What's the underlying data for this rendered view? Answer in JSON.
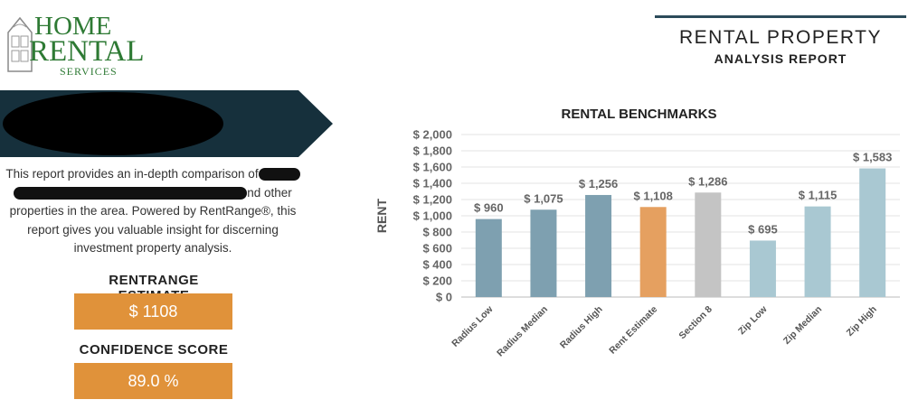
{
  "logo": {
    "line1": "HOME",
    "line2": "RENTAL",
    "line3": "SERVICES"
  },
  "description": {
    "part1": "This report provides an in-depth comparison of",
    "part2": "nd other",
    "rest": "properties in the area. Powered by RentRange®, this report gives you valuable insight for discerning investment property analysis."
  },
  "estimate": {
    "label": "RENTRANGE ESTIMATE",
    "value": "$ 1108"
  },
  "confidence": {
    "label": "CONFIDENCE SCORE",
    "value": "89.0 %"
  },
  "header": {
    "title": "RENTAL PROPERTY",
    "subtitle": "ANALYSIS REPORT",
    "rule_color": "#2c4b5a"
  },
  "chart_data": {
    "type": "bar",
    "title": "RENTAL BENCHMARKS",
    "xlabel": "",
    "ylabel": "RENT",
    "ylim": [
      0,
      2000
    ],
    "yticks": [
      0,
      200,
      400,
      600,
      800,
      1000,
      1200,
      1400,
      1600,
      1800,
      2000
    ],
    "ytick_labels": [
      "$ 0",
      "$ 200",
      "$ 400",
      "$ 600",
      "$ 800",
      "$ 1,000",
      "$ 1,200",
      "$ 1,400",
      "$ 1,600",
      "$ 1,800",
      "$ 2,000"
    ],
    "categories": [
      "Radius Low",
      "Radius Median",
      "Radius High",
      "Rent Estimate",
      "Section 8",
      "Zip Low",
      "Zip Median",
      "Zip High"
    ],
    "values": [
      960,
      1075,
      1256,
      1108,
      1286,
      695,
      1115,
      1583
    ],
    "data_labels": [
      "$ 960",
      "$ 1,075",
      "$ 1,256",
      "$ 1,108",
      "$ 1,286",
      "$ 695",
      "$ 1,115",
      "$ 1,583"
    ],
    "colors": [
      "#7ea0b0",
      "#7ea0b0",
      "#7ea0b0",
      "#e5a060",
      "#c4c4c4",
      "#a9c8d2",
      "#a9c8d2",
      "#a9c8d2"
    ],
    "grid": true
  }
}
